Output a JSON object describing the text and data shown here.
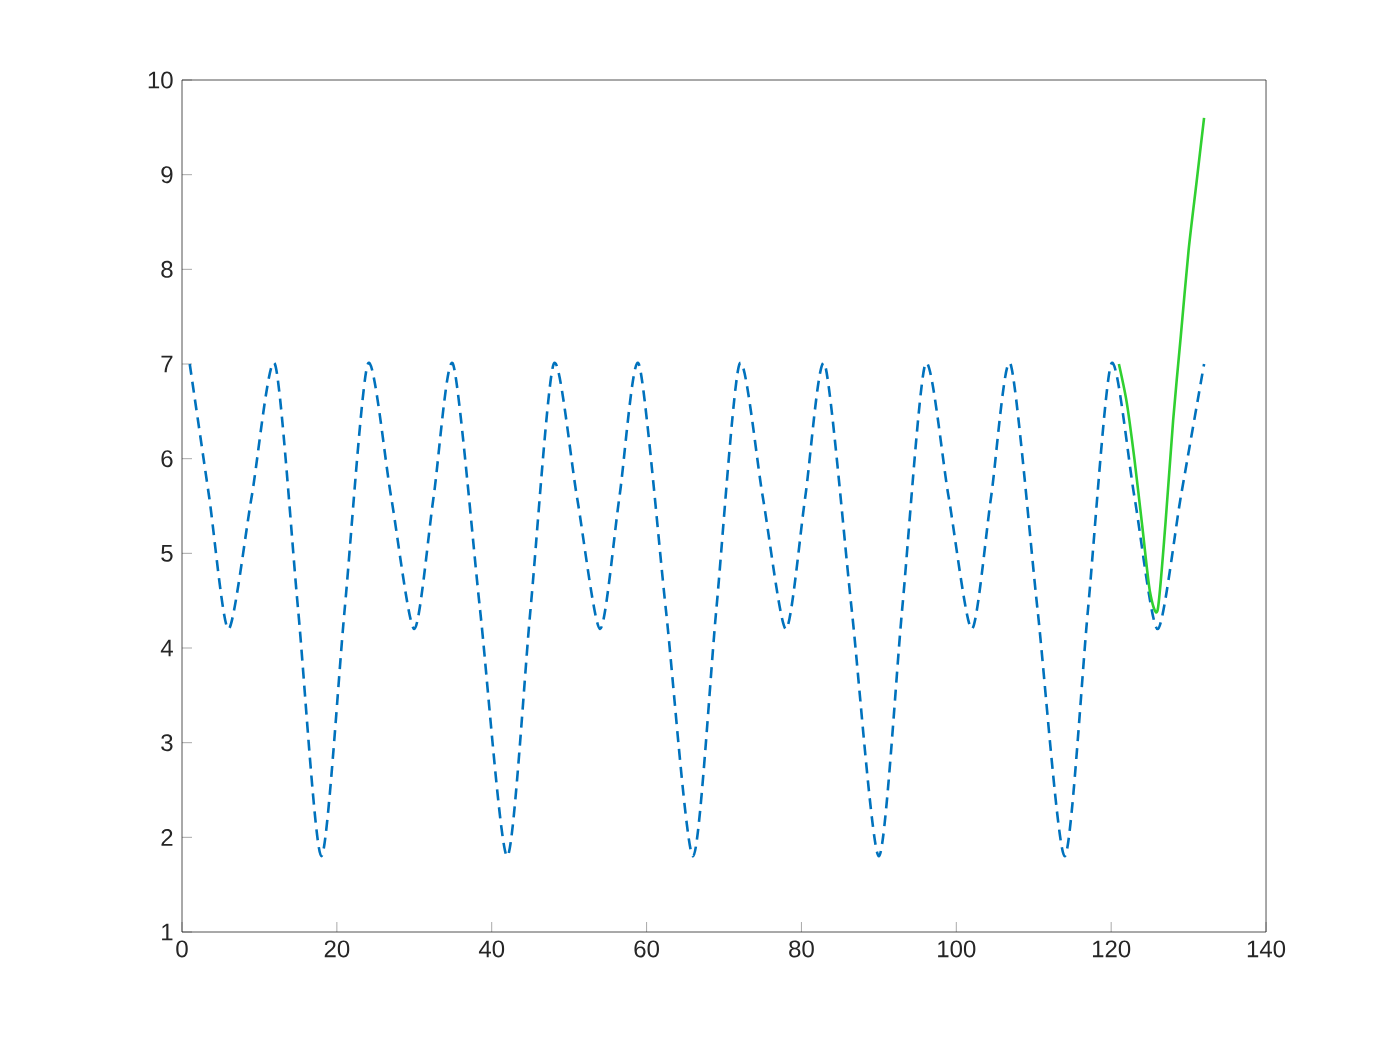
{
  "chart_data": {
    "type": "line",
    "xlim": [
      0,
      140
    ],
    "xticks": [
      0,
      20,
      40,
      60,
      80,
      100,
      120,
      140
    ],
    "ylim": [
      1,
      10
    ],
    "yticks": [
      1,
      2,
      3,
      4,
      5,
      6,
      7,
      8,
      9,
      10
    ],
    "grid": false,
    "series": [
      {
        "color": "#0072bd",
        "line_style": "dashed",
        "x": [
          1,
          3.5,
          6,
          9,
          12,
          15,
          18,
          21,
          24,
          27,
          30,
          32.5,
          35,
          38.5,
          42,
          45,
          48,
          51,
          54,
          56.5,
          59,
          62.5,
          66,
          69,
          72,
          75,
          78,
          80.5,
          83,
          86.5,
          90,
          93,
          96,
          99,
          102,
          104.5,
          107,
          110.5,
          114,
          117,
          120,
          123,
          126,
          129,
          132
        ],
        "values": [
          7.0,
          5.6,
          4.2,
          5.6,
          7.0,
          4.4,
          1.8,
          4.4,
          7.0,
          5.6,
          4.2,
          5.6,
          7.0,
          4.4,
          1.8,
          4.4,
          7.0,
          5.6,
          4.2,
          5.6,
          7.0,
          4.4,
          1.8,
          4.4,
          7.0,
          5.6,
          4.2,
          5.6,
          7.0,
          4.4,
          1.8,
          4.4,
          7.0,
          5.6,
          4.2,
          5.6,
          7.0,
          4.4,
          1.8,
          4.4,
          7.0,
          5.6,
          4.2,
          5.6,
          7.0
        ]
      },
      {
        "color": "#30d030",
        "line_style": "solid",
        "x": [
          121,
          122,
          123,
          124,
          125,
          126,
          127,
          128,
          129,
          130,
          131,
          132
        ],
        "values": [
          7.0,
          6.6,
          6.0,
          5.3,
          4.6,
          4.4,
          5.3,
          6.4,
          7.3,
          8.2,
          8.9,
          9.6
        ]
      }
    ]
  }
}
